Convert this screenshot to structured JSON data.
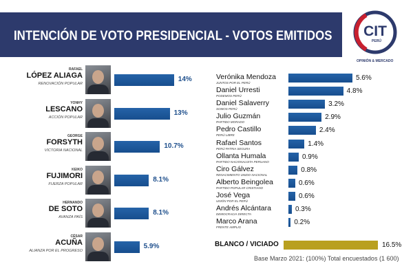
{
  "header": {
    "title": "INTENCIÓN DE VOTO PRESIDENCIAL - VOTOS EMITIDOS"
  },
  "logo": {
    "text": "CIT",
    "country": "PERÚ",
    "tagline": "OPINIÓN & MERCADO"
  },
  "colors": {
    "banner": "#2d3a6c",
    "bar": "#1d5899",
    "blanco": "#b9a01f",
    "logo_red": "#c8202f"
  },
  "chart_data": {
    "type": "bar",
    "title": "INTENCIÓN DE VOTO PRESIDENCIAL - VOTOS EMITIDOS",
    "unit": "%",
    "top_candidates": [
      {
        "first": "RAFAEL",
        "last": "LÓPEZ ALIAGA",
        "party": "RENOVACIÓN POPULAR",
        "value": 14,
        "label": "14%"
      },
      {
        "first": "YONHY",
        "last": "LESCANO",
        "party": "ACCIÓN POPULAR",
        "value": 13,
        "label": "13%"
      },
      {
        "first": "GEORGE",
        "last": "FORSYTH",
        "party": "VICTORIA NACIONAL",
        "value": 10.7,
        "label": "10.7%"
      },
      {
        "first": "KEIKO",
        "last": "FUJIMORI",
        "party": "FUERZA POPULAR",
        "value": 8.1,
        "label": "8.1%"
      },
      {
        "first": "HERNANDO",
        "last": "DE SOTO",
        "party": "AVANZA PAÍS",
        "value": 8.1,
        "label": "8.1%"
      },
      {
        "first": "CÉSAR",
        "last": "ACUÑA",
        "party": "ALIANZA POR EL PROGRESO",
        "value": 5.9,
        "label": "5.9%"
      }
    ],
    "other_candidates": [
      {
        "name": "Verónika Mendoza",
        "party": "JUNTOS POR EL PERÚ",
        "value": 5.6,
        "label": "5.6%"
      },
      {
        "name": "Daniel Urresti",
        "party": "PODEMOS PERÚ",
        "value": 4.8,
        "label": "4.8%"
      },
      {
        "name": "Daniel Salaverry",
        "party": "SOMOS PERÚ",
        "value": 3.2,
        "label": "3.2%"
      },
      {
        "name": "Julio Guzmán",
        "party": "PARTIDO MORADO",
        "value": 2.9,
        "label": "2.9%"
      },
      {
        "name": "Pedro Castillo",
        "party": "PERÚ LIBRE",
        "value": 2.4,
        "label": "2.4%"
      },
      {
        "name": "Rafael Santos",
        "party": "PERÚ PATRIA SEGURA",
        "value": 1.4,
        "label": "1.4%"
      },
      {
        "name": "Ollanta Humala",
        "party": "PARTIDO NACIONALISTA PERUANO",
        "value": 0.9,
        "label": "0.9%"
      },
      {
        "name": "Ciro Gálvez",
        "party": "RENACIMIENTO UNIDO NACIONAL",
        "value": 0.8,
        "label": "0.8%"
      },
      {
        "name": "Alberto Beingolea",
        "party": "PARTIDO POPULAR CRISTIANO",
        "value": 0.6,
        "label": "0.6%"
      },
      {
        "name": "José Vega",
        "party": "UNIÓN POR EL PERÚ",
        "value": 0.6,
        "label": "0.6%"
      },
      {
        "name": "Andrés Alcántara",
        "party": "DEMOCRACIA DIRECTA",
        "value": 0.3,
        "label": "0.3%"
      },
      {
        "name": "Marco Arana",
        "party": "FRENTE AMPLIO",
        "value": 0.2,
        "label": "0.2%"
      }
    ],
    "blanco": {
      "label": "BLANCO / VICIADO",
      "value": 16.5,
      "value_label": "16.5%"
    },
    "footnote": "Base Marzo 2021: (100%) Total encuestados (1 600)"
  }
}
